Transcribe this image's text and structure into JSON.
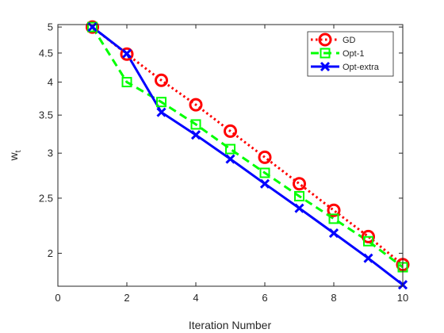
{
  "chart_data": {
    "type": "line",
    "xlabel": "Iteration Number",
    "ylabel_main": "w",
    "ylabel_sub": "t",
    "xlim": [
      0,
      10
    ],
    "ylim": [
      1.75,
      5.05
    ],
    "y_scale": "log",
    "grid": false,
    "legend_placement": "top-right",
    "x_ticks": [
      "0",
      "2",
      "4",
      "6",
      "8",
      "10"
    ],
    "y_ticks": [
      "2",
      "2.5",
      "3",
      "3.5",
      "4",
      "4.5",
      "5"
    ],
    "x": [
      1,
      2,
      3,
      4,
      5,
      6,
      7,
      8,
      9,
      10
    ],
    "series": [
      {
        "name": "GD",
        "color": "#ff0000",
        "style": "dotted",
        "marker": "circle",
        "values": [
          5.0,
          4.48,
          4.03,
          3.65,
          3.28,
          2.95,
          2.65,
          2.38,
          2.14,
          1.91
        ]
      },
      {
        "name": "Opt-1",
        "color": "#00ff00",
        "style": "dashed",
        "marker": "square",
        "values": [
          5.0,
          4.0,
          3.69,
          3.37,
          3.05,
          2.77,
          2.52,
          2.3,
          2.1,
          1.89
        ]
      },
      {
        "name": "Opt-extra",
        "color": "#0000ff",
        "style": "solid",
        "marker": "x",
        "values": [
          5.0,
          4.49,
          3.54,
          3.23,
          2.93,
          2.65,
          2.4,
          2.17,
          1.96,
          1.76
        ]
      }
    ]
  }
}
